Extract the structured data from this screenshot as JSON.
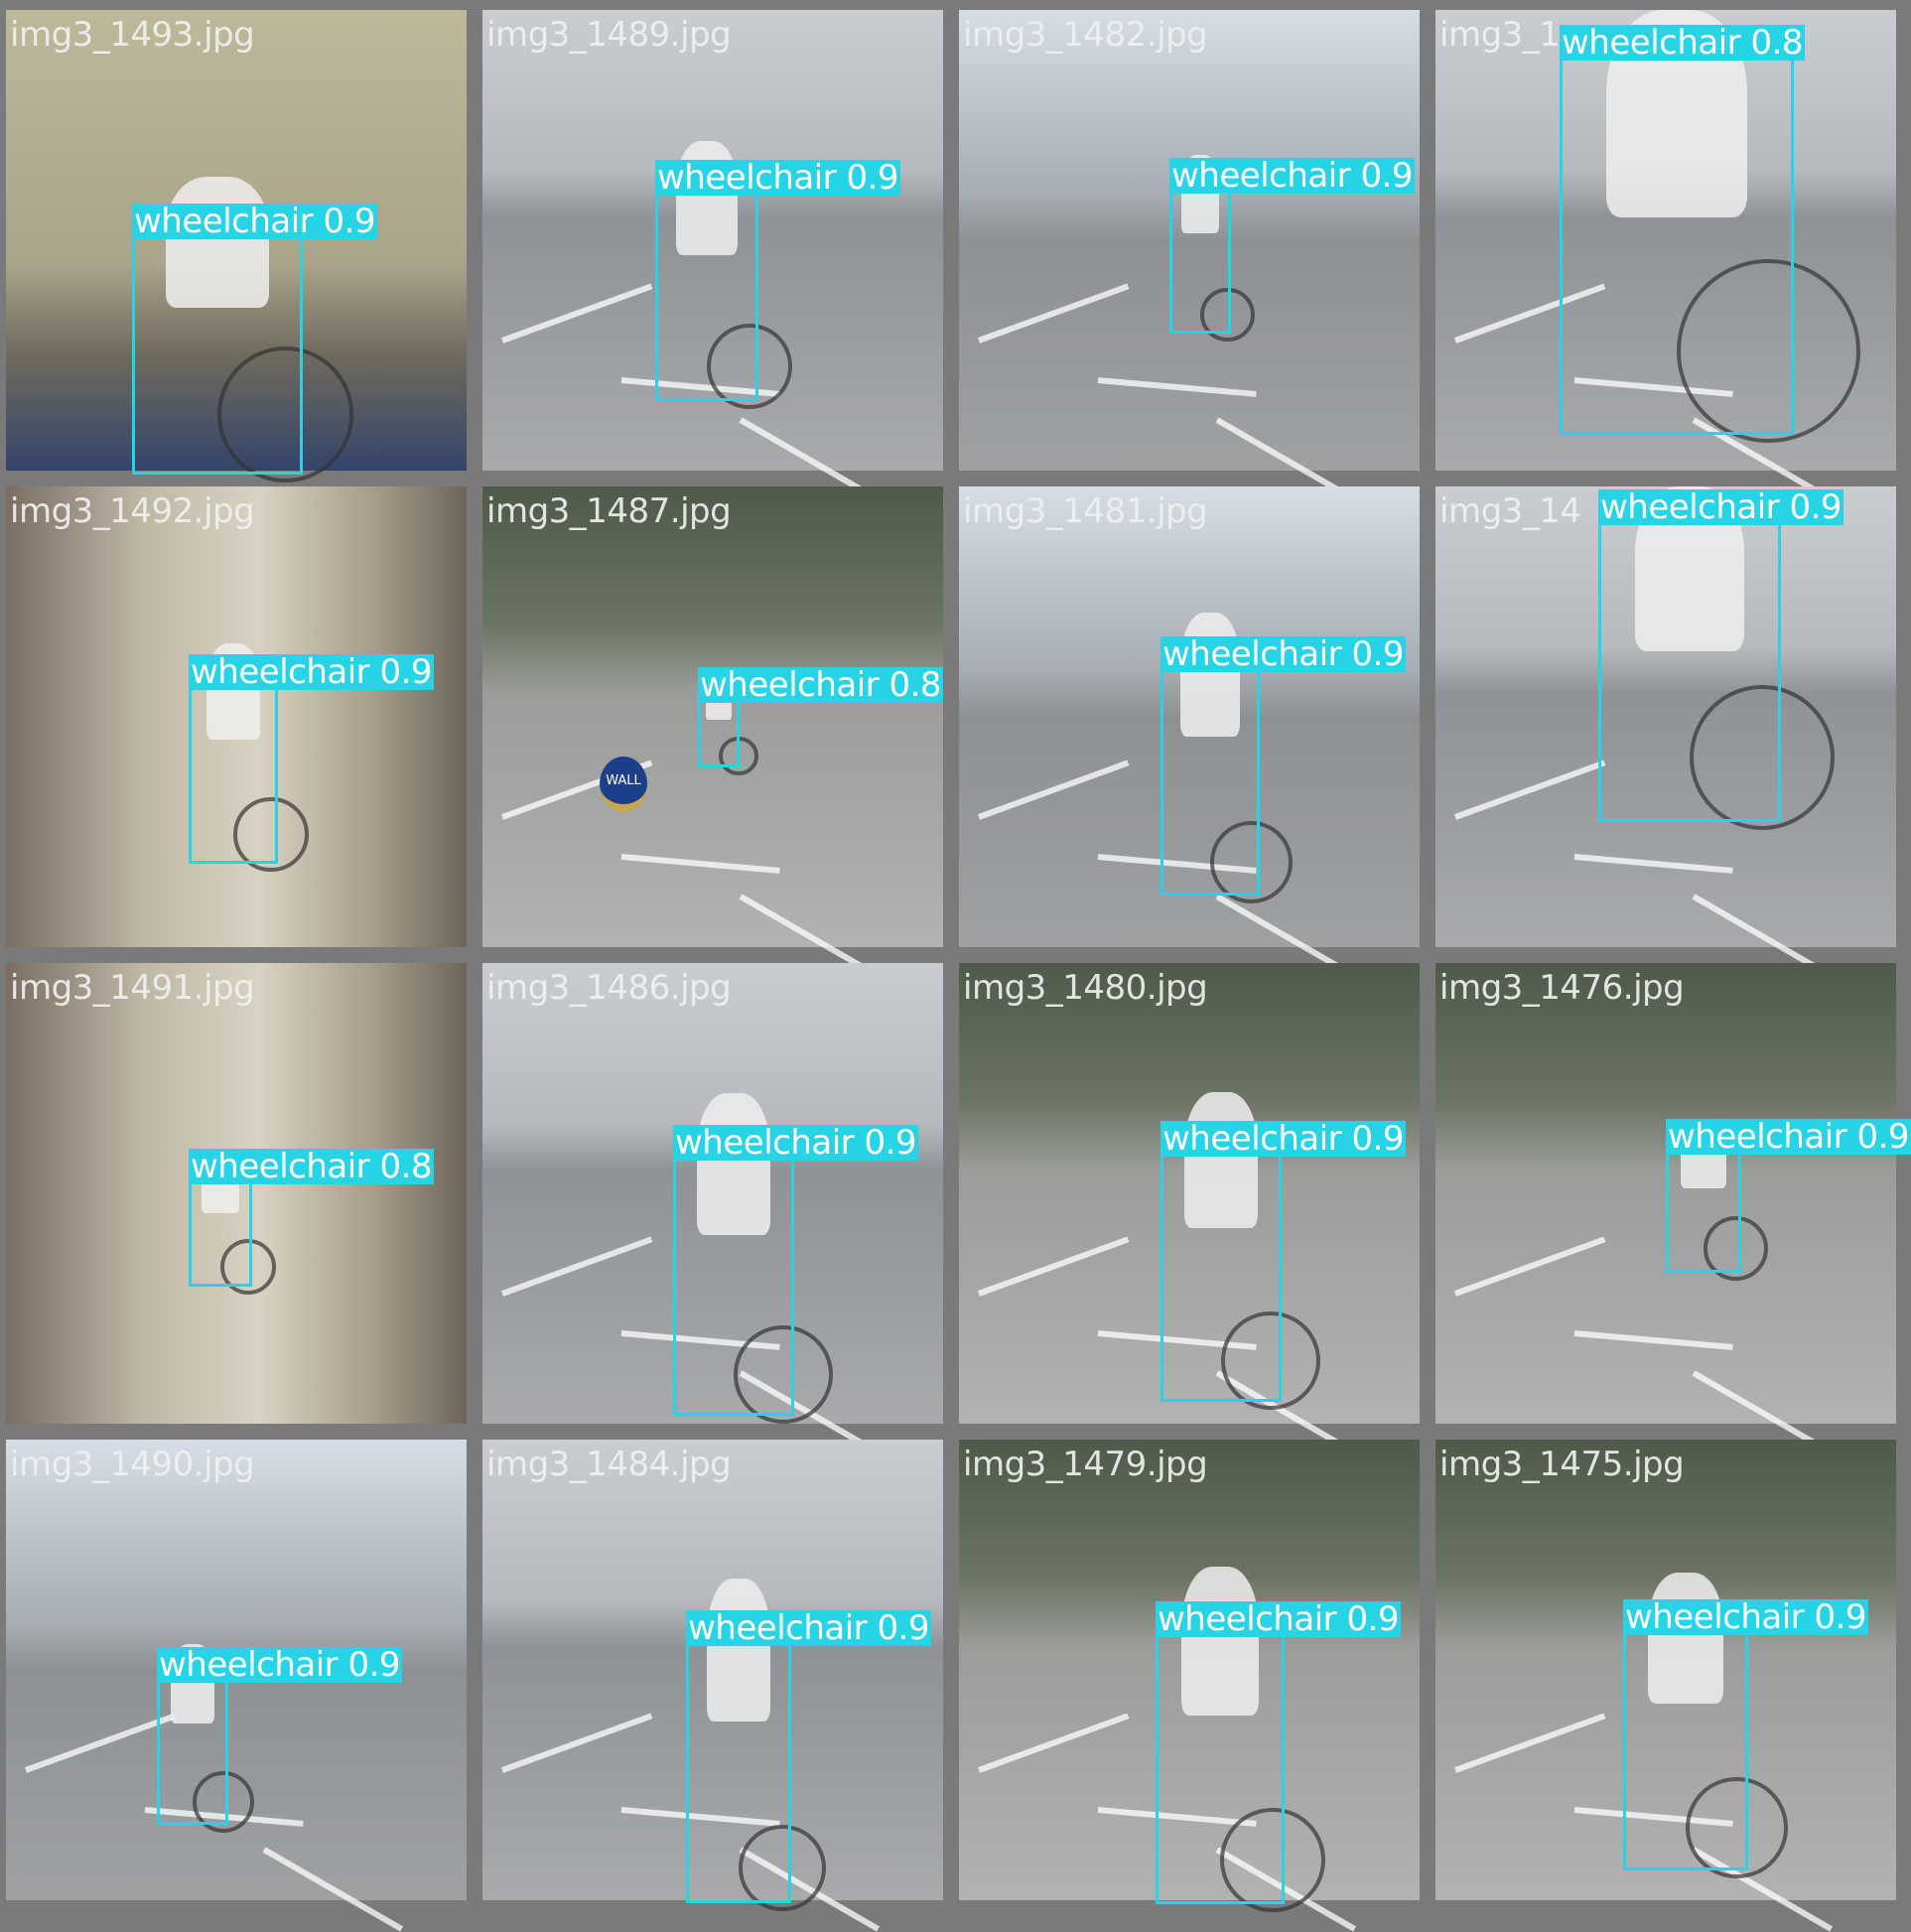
{
  "tiles": [
    {
      "file": "img3_1493.jpg",
      "label": "wheelchair 0.9",
      "scene": "indoor"
    },
    {
      "file": "img3_1489.jpg",
      "label": "wheelchair 0.9",
      "scene": "lot"
    },
    {
      "file": "img3_1482.jpg",
      "label": "wheelchair 0.9",
      "scene": "lot3"
    },
    {
      "file": "img3_1",
      "label": "wheelchair 0.8",
      "scene": "lot"
    },
    {
      "file": "img3_1492.jpg",
      "label": "wheelchair 0.9",
      "scene": "hall"
    },
    {
      "file": "img3_1487.jpg",
      "label": "wheelchair 0.8",
      "scene": "lot2"
    },
    {
      "file": "img3_1481.jpg",
      "label": "wheelchair 0.9",
      "scene": "lot3"
    },
    {
      "file": "img3_14",
      "label": "wheelchair 0.9",
      "scene": "lot"
    },
    {
      "file": "img3_1491.jpg",
      "label": "wheelchair 0.8",
      "scene": "hall"
    },
    {
      "file": "img3_1486.jpg",
      "label": "wheelchair 0.9",
      "scene": "lot"
    },
    {
      "file": "img3_1480.jpg",
      "label": "wheelchair 0.9",
      "scene": "lot2"
    },
    {
      "file": "img3_1476.jpg",
      "label": "wheelchair 0.9",
      "scene": "lot2"
    },
    {
      "file": "img3_1490.jpg",
      "label": "wheelchair 0.9",
      "scene": "lot3"
    },
    {
      "file": "img3_1484.jpg",
      "label": "wheelchair 0.9",
      "scene": "lot"
    },
    {
      "file": "img3_1479.jpg",
      "label": "wheelchair 0.9",
      "scene": "lot2"
    },
    {
      "file": "img3_1475.jpg",
      "label": "wheelchair 0.9",
      "scene": "lot2"
    }
  ],
  "sign_text": "WALL",
  "box_color": "#26d4e6"
}
